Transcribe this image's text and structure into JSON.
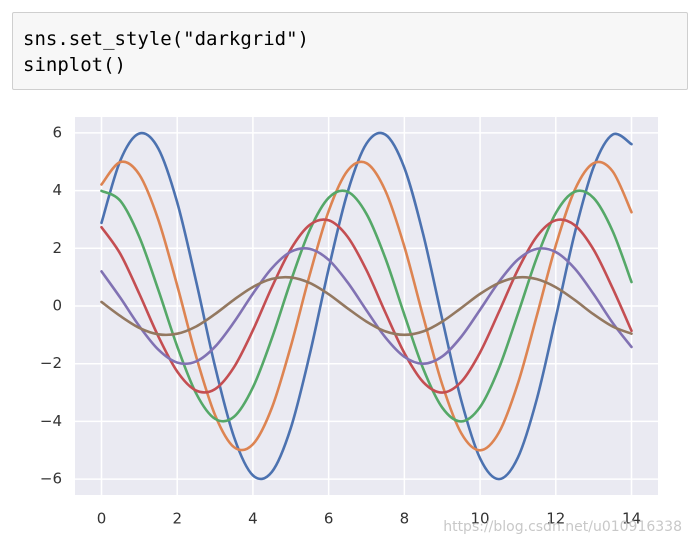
{
  "code_cell": {
    "lines": [
      "sns.set_style(\"darkgrid\")",
      "sinplot()"
    ]
  },
  "watermark": "https://blog.csdn.net/u010916338",
  "chart_data": {
    "type": "line",
    "grid": true,
    "background": "#eaeaf2",
    "x": [
      0,
      0.5,
      1,
      1.5,
      2,
      2.5,
      3,
      3.5,
      4,
      4.5,
      5,
      5.5,
      6,
      6.5,
      7,
      7.5,
      8,
      8.5,
      9,
      9.5,
      10,
      10.5,
      11,
      11.5,
      12,
      12.5,
      13,
      13.5,
      14
    ],
    "xlim": [
      -0.7,
      14.7
    ],
    "ylim": [
      -6.55,
      6.55
    ],
    "xticks": [
      0,
      2,
      4,
      6,
      8,
      10,
      12,
      14
    ],
    "yticks": [
      {
        "value": -6,
        "label": "−6"
      },
      {
        "value": -4,
        "label": "−4"
      },
      {
        "value": -2,
        "label": "−2"
      },
      0,
      2,
      4,
      6
    ],
    "series": [
      {
        "color": "#4c72b0",
        "values": [
          2.88,
          5.05,
          5.98,
          5.46,
          3.59,
          0.85,
          -2.1,
          -4.54,
          -5.87,
          -5.75,
          -4.23,
          -1.68,
          1.29,
          3.94,
          5.63,
          5.94,
          4.79,
          2.47,
          -0.45,
          -3.26,
          -5.28,
          -6.0,
          -5.25,
          -3.22,
          -0.4,
          2.52,
          4.82,
          5.94,
          5.61
        ]
      },
      {
        "color": "#dd8452",
        "values": [
          4.21,
          4.99,
          4.55,
          2.99,
          0.71,
          -1.75,
          -3.78,
          -4.89,
          -4.79,
          -3.53,
          -1.4,
          1.08,
          3.29,
          4.69,
          4.95,
          3.99,
          2.06,
          -0.38,
          -2.72,
          -4.4,
          -5.0,
          -4.38,
          -2.68,
          -0.33,
          2.1,
          4.02,
          4.95,
          4.67,
          3.25
        ]
      },
      {
        "color": "#55a868",
        "values": [
          3.99,
          3.64,
          2.39,
          0.56,
          -1.4,
          -3.03,
          -3.91,
          -3.84,
          -2.82,
          -1.12,
          0.86,
          2.63,
          3.75,
          3.96,
          3.19,
          1.65,
          -0.3,
          -2.18,
          -3.52,
          -4.0,
          -3.5,
          -2.15,
          -0.27,
          1.68,
          3.22,
          3.96,
          3.74,
          2.6,
          0.83
        ]
      },
      {
        "color": "#c44e52",
        "values": [
          2.73,
          1.8,
          0.42,
          -1.05,
          -2.27,
          -2.93,
          -2.88,
          -2.12,
          -0.84,
          0.65,
          1.97,
          2.81,
          2.97,
          2.4,
          1.24,
          -0.23,
          -1.63,
          -2.64,
          -3.0,
          -2.63,
          -1.61,
          -0.2,
          1.26,
          2.41,
          2.97,
          2.8,
          1.95,
          0.62,
          -0.86
        ]
      },
      {
        "color": "#8172b3",
        "values": [
          1.2,
          0.28,
          -0.7,
          -1.51,
          -1.96,
          -1.92,
          -1.41,
          -0.56,
          0.43,
          1.31,
          1.88,
          1.98,
          1.6,
          0.82,
          -0.15,
          -1.09,
          -1.76,
          -2.0,
          -1.75,
          -1.07,
          -0.13,
          0.84,
          1.61,
          1.98,
          1.87,
          1.3,
          0.41,
          -0.58,
          -1.42
        ]
      },
      {
        "color": "#937860",
        "values": [
          0.14,
          -0.35,
          -0.76,
          -0.98,
          -0.96,
          -0.71,
          -0.28,
          0.22,
          0.66,
          0.94,
          0.99,
          0.8,
          0.41,
          -0.08,
          -0.54,
          -0.88,
          -1.0,
          -0.88,
          -0.54,
          -0.07,
          0.42,
          0.8,
          0.99,
          0.93,
          0.65,
          0.21,
          -0.29,
          -0.71,
          -0.96
        ]
      }
    ]
  }
}
